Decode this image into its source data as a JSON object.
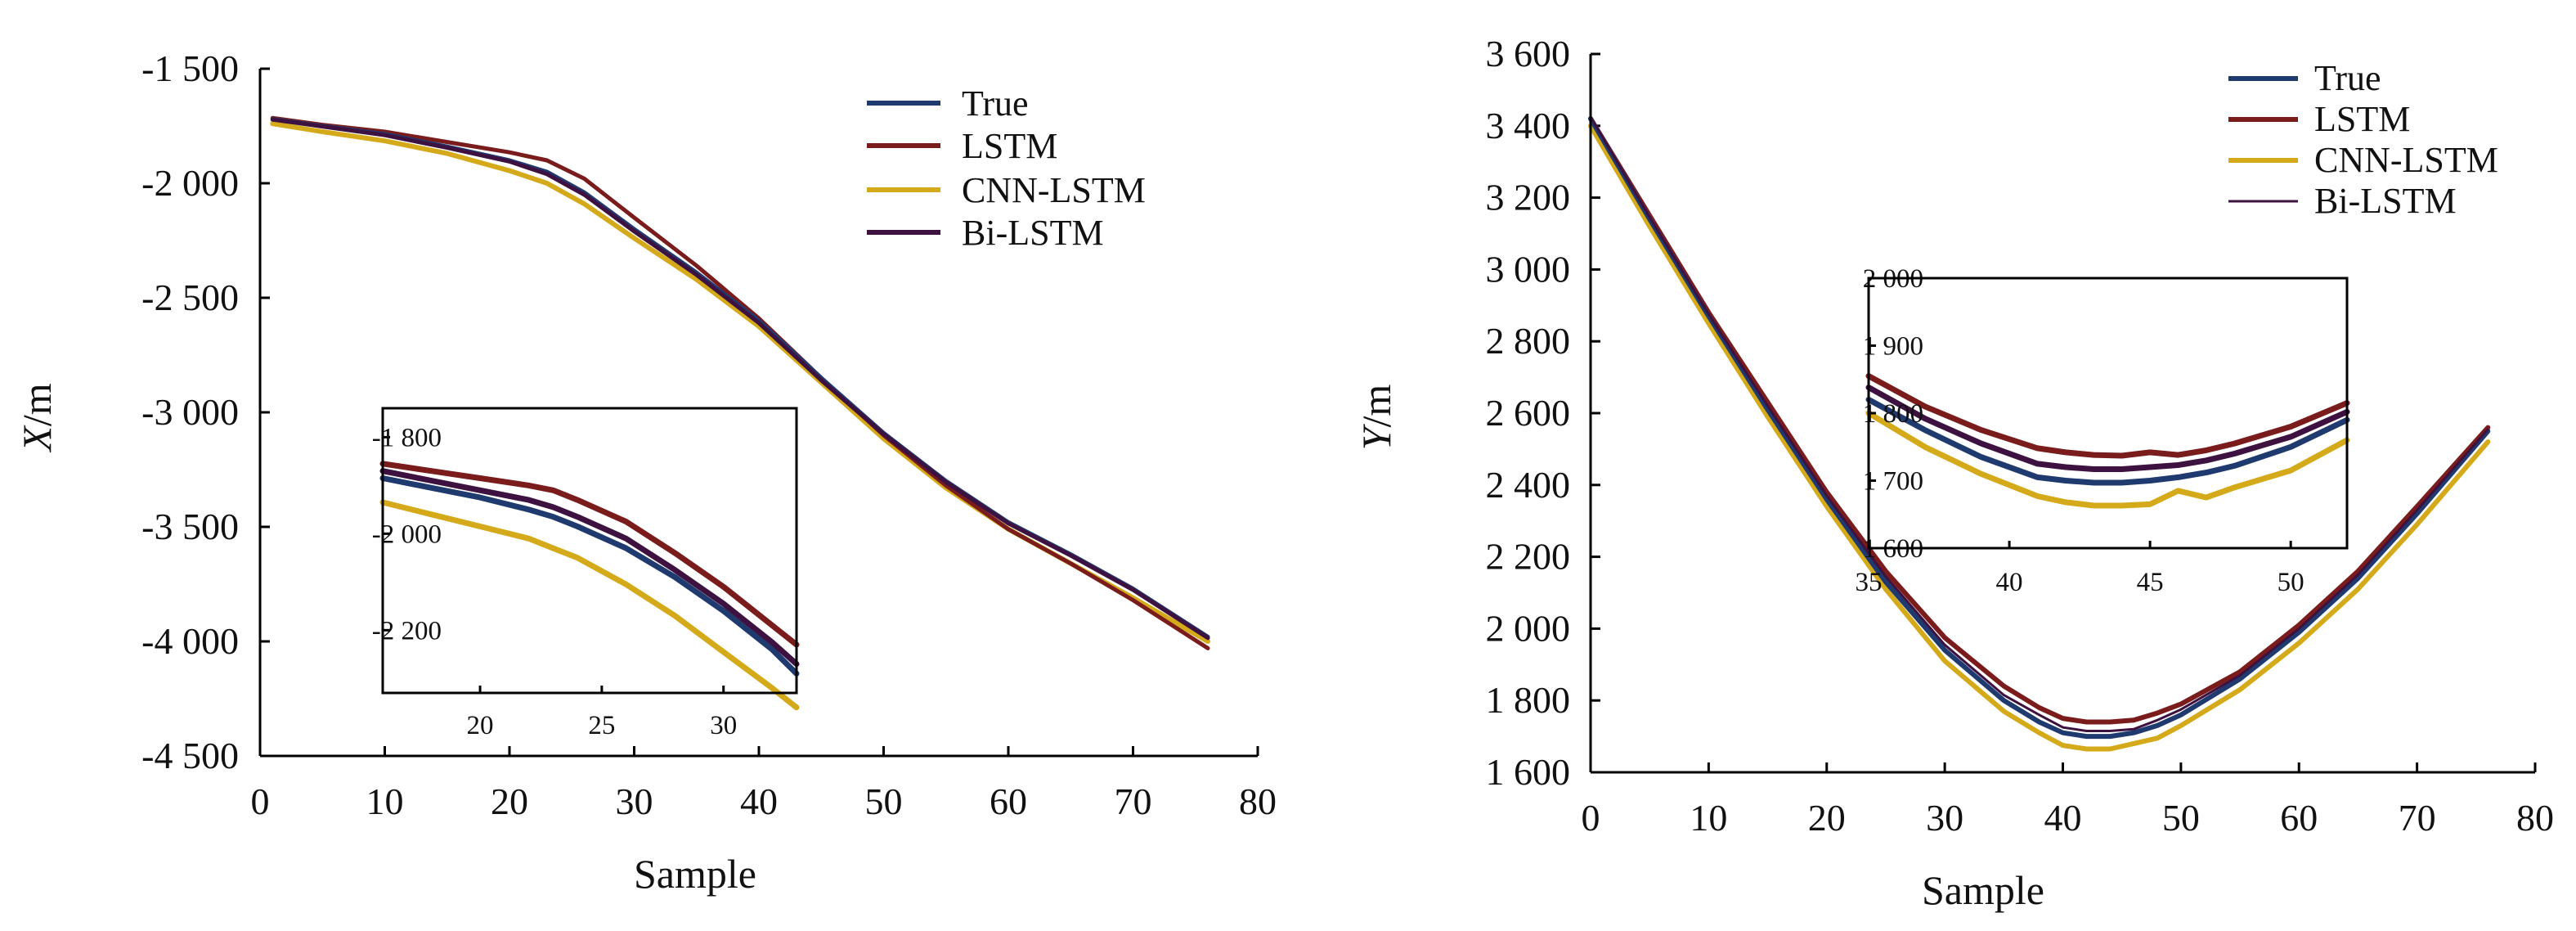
{
  "chart_data": [
    {
      "type": "line",
      "id": "x-chart",
      "title": "",
      "xlabel": "Sample",
      "ylabel_var": "X",
      "ylabel_unit": "/m",
      "xlim": [
        0,
        80
      ],
      "ylim": [
        -4500,
        -1500
      ],
      "grid": false,
      "legend_position": "top-right",
      "x_ticks": [
        0,
        10,
        20,
        30,
        40,
        50,
        60,
        70,
        80
      ],
      "x_tick_labels": [
        "0",
        "10",
        "20",
        "30",
        "40",
        "50",
        "60",
        "70",
        "80"
      ],
      "y_ticks": [
        -1500,
        -2000,
        -2500,
        -3000,
        -3500,
        -4000,
        -4500
      ],
      "y_tick_labels": [
        "-1 500",
        "-2 000",
        "-2 500",
        "-3 000",
        "-3 500",
        "-4 000",
        "-4 500"
      ],
      "x": [
        1,
        5,
        10,
        15,
        20,
        23,
        26,
        30,
        35,
        40,
        45,
        50,
        55,
        60,
        65,
        70,
        76
      ],
      "series": [
        {
          "name": "True",
          "color": "#1f3a6e",
          "values": [
            -1720,
            -1750,
            -1785,
            -1840,
            -1900,
            -1950,
            -2040,
            -2200,
            -2390,
            -2600,
            -2850,
            -3090,
            -3300,
            -3480,
            -3620,
            -3770,
            -3980
          ]
        },
        {
          "name": "LSTM",
          "color": "#7a1c1c",
          "values": [
            -1715,
            -1745,
            -1775,
            -1820,
            -1865,
            -1900,
            -1980,
            -2150,
            -2360,
            -2590,
            -2850,
            -3100,
            -3320,
            -3510,
            -3660,
            -3820,
            -4030
          ]
        },
        {
          "name": "CNN-LSTM",
          "color": "#d4aa1a",
          "values": [
            -1740,
            -1775,
            -1815,
            -1870,
            -1945,
            -2000,
            -2090,
            -2240,
            -2420,
            -2625,
            -2870,
            -3115,
            -3330,
            -3510,
            -3660,
            -3810,
            -4000
          ]
        },
        {
          "name": "Bi-LSTM",
          "color": "#3d1240",
          "values": [
            -1722,
            -1752,
            -1790,
            -1845,
            -1905,
            -1960,
            -2050,
            -2210,
            -2400,
            -2610,
            -2860,
            -3095,
            -3305,
            -3485,
            -3625,
            -3775,
            -3985
          ]
        }
      ],
      "inset": {
        "xlim": [
          16,
          33
        ],
        "ylim": [
          -2330,
          -1740
        ],
        "x_ticks": [
          20,
          25,
          30
        ],
        "x_tick_labels": [
          "20",
          "25",
          "30"
        ],
        "y_ticks": [
          -1800,
          -2000,
          -2200
        ],
        "y_tick_labels": [
          "-1 800",
          "-2 000",
          "-2 200"
        ],
        "x": [
          16,
          18,
          20,
          22,
          23,
          24,
          26,
          28,
          30,
          32,
          33
        ],
        "series": [
          {
            "name": "True",
            "values": [
              -1885,
              -1905,
              -1925,
              -1950,
              -1965,
              -1985,
              -2030,
              -2090,
              -2160,
              -2240,
              -2290
            ]
          },
          {
            "name": "LSTM",
            "values": [
              -1855,
              -1870,
              -1885,
              -1900,
              -1910,
              -1930,
              -1975,
              -2040,
              -2110,
              -2190,
              -2230
            ]
          },
          {
            "name": "CNN-LSTM",
            "values": [
              -1935,
              -1960,
              -1985,
              -2010,
              -2030,
              -2050,
              -2105,
              -2170,
              -2245,
              -2320,
              -2360
            ]
          },
          {
            "name": "Bi-LSTM",
            "values": [
              -1870,
              -1890,
              -1910,
              -1930,
              -1945,
              -1965,
              -2010,
              -2075,
              -2145,
              -2225,
              -2270
            ]
          }
        ]
      }
    },
    {
      "type": "line",
      "id": "y-chart",
      "title": "",
      "xlabel": "Sample",
      "ylabel_var": "Y",
      "ylabel_unit": "/m",
      "xlim": [
        0,
        80
      ],
      "ylim": [
        1600,
        3600
      ],
      "grid": false,
      "legend_position": "top-right",
      "x_ticks": [
        0,
        10,
        20,
        30,
        40,
        50,
        60,
        70,
        80
      ],
      "x_tick_labels": [
        "0",
        "10",
        "20",
        "30",
        "40",
        "50",
        "60",
        "70",
        "80"
      ],
      "y_ticks": [
        3600,
        3400,
        3200,
        3000,
        2800,
        2600,
        2400,
        2200,
        2000,
        1800,
        1600
      ],
      "y_tick_labels": [
        "3 600",
        "3 400",
        "3 200",
        "3 000",
        "2 800",
        "2 600",
        "2 400",
        "2 200",
        "2 000",
        "1 800",
        "1 600"
      ],
      "x": [
        0,
        5,
        10,
        15,
        20,
        25,
        30,
        35,
        38,
        40,
        42,
        44,
        46,
        48,
        50,
        55,
        60,
        65,
        70,
        76
      ],
      "series": [
        {
          "name": "True",
          "color": "#1f3a6e",
          "values": [
            3420,
            3140,
            2870,
            2610,
            2360,
            2130,
            1940,
            1800,
            1740,
            1710,
            1700,
            1700,
            1710,
            1730,
            1760,
            1860,
            1990,
            2140,
            2320,
            2550
          ]
        },
        {
          "name": "LSTM",
          "color": "#7a1c1c",
          "values": [
            3420,
            3150,
            2880,
            2630,
            2380,
            2160,
            1975,
            1840,
            1780,
            1750,
            1740,
            1740,
            1745,
            1765,
            1790,
            1880,
            2010,
            2160,
            2340,
            2560
          ]
        },
        {
          "name": "CNN-LSTM",
          "color": "#d4aa1a",
          "values": [
            3400,
            3120,
            2850,
            2590,
            2340,
            2110,
            1910,
            1770,
            1710,
            1675,
            1665,
            1665,
            1680,
            1695,
            1730,
            1830,
            1960,
            2110,
            2290,
            2520
          ]
        },
        {
          "name": "Bi-LSTM",
          "color": "#3d1240",
          "values": [
            3425,
            3145,
            2875,
            2620,
            2370,
            2145,
            1955,
            1815,
            1760,
            1725,
            1715,
            1715,
            1720,
            1745,
            1775,
            1870,
            2000,
            2150,
            2330,
            2555
          ]
        }
      ],
      "inset": {
        "xlim": [
          35,
          52
        ],
        "ylim": [
          1600,
          2000
        ],
        "x_ticks": [
          35,
          40,
          45,
          50
        ],
        "x_tick_labels": [
          "35",
          "40",
          "45",
          "50"
        ],
        "y_ticks": [
          2000,
          1900,
          1800,
          1700,
          1600
        ],
        "y_tick_labels": [
          "2 000",
          "1 900",
          "1 800",
          "1 700",
          "1 600"
        ],
        "x": [
          35,
          37,
          39,
          41,
          42,
          43,
          44,
          45,
          46,
          47,
          48,
          50,
          52
        ],
        "series": [
          {
            "name": "True",
            "values": [
              1820,
              1775,
              1735,
              1705,
              1700,
              1697,
              1697,
              1700,
              1705,
              1712,
              1722,
              1750,
              1790
            ]
          },
          {
            "name": "LSTM",
            "values": [
              1855,
              1810,
              1775,
              1748,
              1742,
              1738,
              1737,
              1742,
              1738,
              1745,
              1755,
              1780,
              1815
            ]
          },
          {
            "name": "CNN-LSTM",
            "values": [
              1800,
              1750,
              1710,
              1677,
              1668,
              1663,
              1663,
              1665,
              1685,
              1675,
              1690,
              1715,
              1760
            ]
          },
          {
            "name": "Bi-LSTM",
            "values": [
              1838,
              1792,
              1755,
              1725,
              1720,
              1717,
              1717,
              1720,
              1723,
              1730,
              1740,
              1765,
              1802
            ]
          }
        ]
      }
    }
  ]
}
